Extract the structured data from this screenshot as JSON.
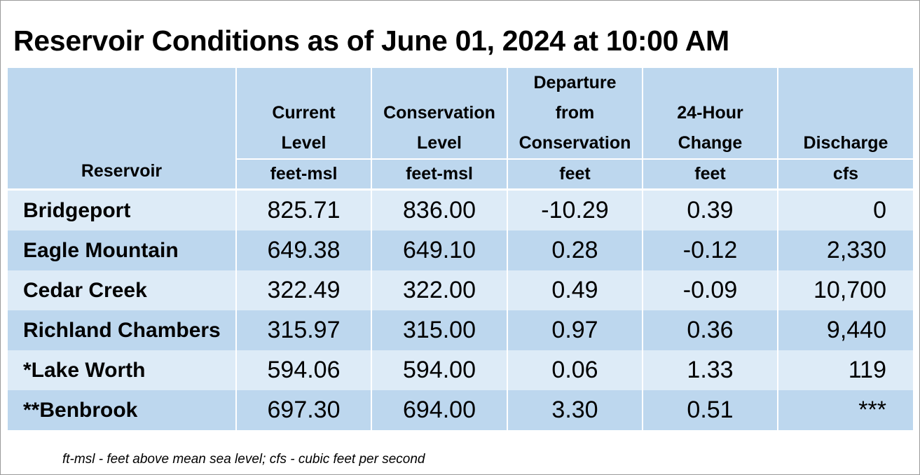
{
  "title": "Reservoir Conditions as of June 01, 2024 at 10:00 AM",
  "columns": [
    {
      "lines": [
        "Reservoir"
      ],
      "unit": ""
    },
    {
      "lines": [
        "Current",
        "Level"
      ],
      "unit": "feet-msl"
    },
    {
      "lines": [
        "Conservation",
        "Level"
      ],
      "unit": "feet-msl"
    },
    {
      "lines": [
        "Departure",
        "from",
        "Conservation"
      ],
      "unit": "feet"
    },
    {
      "lines": [
        "24-Hour",
        "Change"
      ],
      "unit": "feet"
    },
    {
      "lines": [
        "Discharge"
      ],
      "unit": "cfs"
    }
  ],
  "rows": [
    {
      "reservoir": "Bridgeport",
      "current": "825.71",
      "conservation": "836.00",
      "departure": "-10.29",
      "change": "0.39",
      "discharge": "0"
    },
    {
      "reservoir": "Eagle Mountain",
      "current": "649.38",
      "conservation": "649.10",
      "departure": "0.28",
      "change": "-0.12",
      "discharge": "2,330"
    },
    {
      "reservoir": "Cedar Creek",
      "current": "322.49",
      "conservation": "322.00",
      "departure": "0.49",
      "change": "-0.09",
      "discharge": "10,700"
    },
    {
      "reservoir": "Richland Chambers",
      "current": "315.97",
      "conservation": "315.00",
      "departure": "0.97",
      "change": "0.36",
      "discharge": "9,440"
    },
    {
      "reservoir": "*Lake Worth",
      "current": "594.06",
      "conservation": "594.00",
      "departure": "0.06",
      "change": "1.33",
      "discharge": "119"
    },
    {
      "reservoir": "**Benbrook",
      "current": "697.30",
      "conservation": "694.00",
      "departure": "3.30",
      "change": "0.51",
      "discharge": "***"
    }
  ],
  "footnote": "ft-msl - feet above mean sea level; cfs - cubic feet per second",
  "colors": {
    "header": "#bdd7ee",
    "row_light": "#ddebf7",
    "row_dark": "#bdd7ee"
  }
}
